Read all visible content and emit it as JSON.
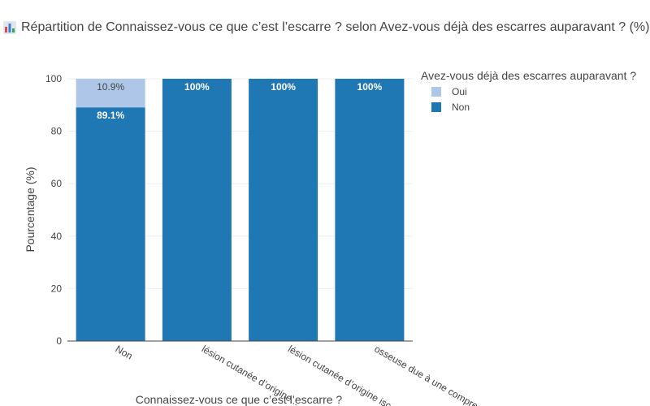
{
  "title": "Répartition de Connaissez-vous ce que c’est l’escarre ? selon Avez-vous déjà des escarres auparavant ? (%)",
  "title_icon": "bar-chart-icon",
  "chart_data": {
    "type": "bar",
    "stacked": true,
    "title": "Répartition de Connaissez-vous ce que c’est l’escarre ? selon Avez-vous déjà des escarres auparavant ? (%)",
    "xlabel": "Connaissez-vous ce que c’est l’escarre ?",
    "ylabel": "Pourcentage (%)",
    "ylim": [
      0,
      100
    ],
    "yticks": [
      0,
      20,
      40,
      60,
      80,
      100
    ],
    "categories": [
      "Non",
      "lésion cutanée d’origine vasculaire",
      "lésion cutanée d’origine ischémique",
      "osseuse due à une compression"
    ],
    "category_labels_visible": [
      "Non",
      "lésion cutanée d’origine...",
      "lésion cutanée d’origine isc",
      "osseuse due à une compre"
    ],
    "series": [
      {
        "name": "Non",
        "color": "#1f77b4",
        "values": [
          89.1,
          100,
          100,
          100
        ],
        "labels": [
          "89.1%",
          "100%",
          "100%",
          "100%"
        ],
        "label_color": "#ffffff"
      },
      {
        "name": "Oui",
        "color": "#aec7e8",
        "values": [
          10.9,
          0,
          0,
          0
        ],
        "labels": [
          "10.9%",
          "",
          "",
          ""
        ],
        "label_color": "#444444"
      }
    ],
    "legend": {
      "title": "Avez-vous déjà des escarres auparavant ?",
      "placement": "top-right",
      "entries": [
        "Oui",
        "Non"
      ]
    },
    "grid": true
  }
}
